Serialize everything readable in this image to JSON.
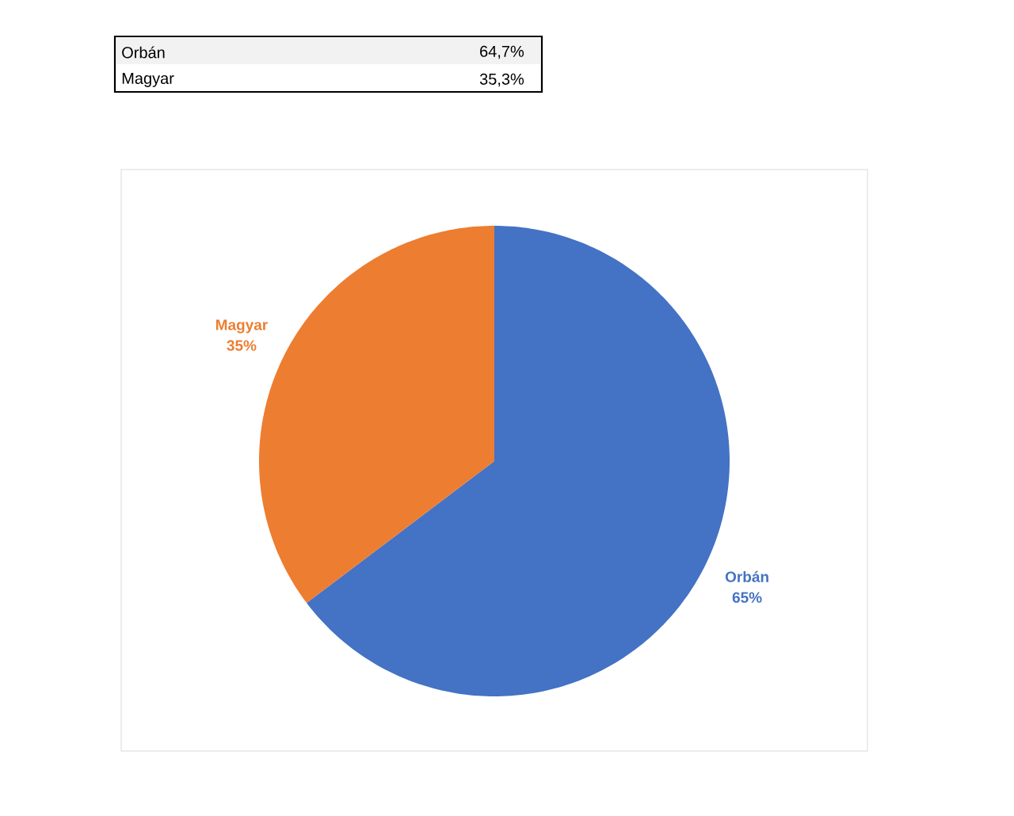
{
  "chart_data": [
    {
      "type": "other",
      "categories": [
        "Orbán",
        "Magyar"
      ],
      "value_labels": [
        "64,7%",
        "35,3%"
      ]
    },
    {
      "type": "pie",
      "categories": [
        "Orbán",
        "Magyar"
      ],
      "values": [
        64.7,
        35.3
      ],
      "colors": [
        "#4472c4",
        "#ed7d31"
      ],
      "value_labels": [
        "65%",
        "35%"
      ]
    }
  ]
}
